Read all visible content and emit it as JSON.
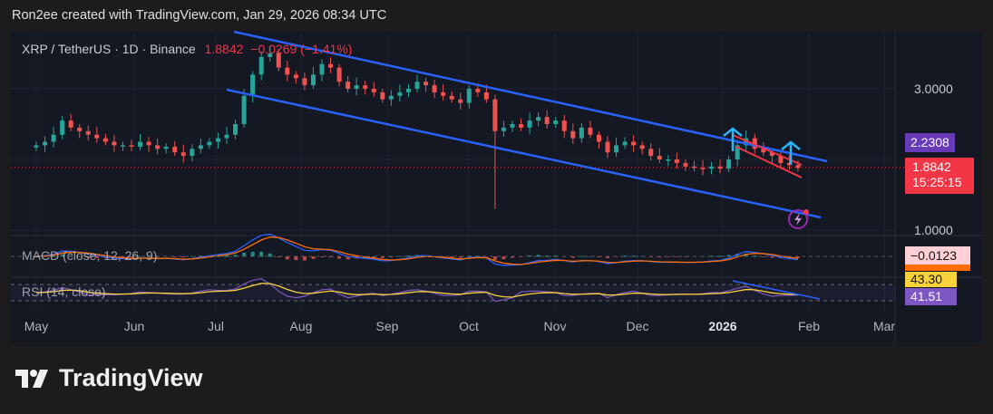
{
  "caption": "Ron2ee created with TradingView.com, Jan 29, 2026 08:34 UTC",
  "legend": {
    "symbol": "XRP / TetherUS · 1D · Binance",
    "price": "1.8842",
    "change": "−0.0269 (−1.41%)"
  },
  "price_axis": {
    "labels": [
      "3.0000",
      "1.0000"
    ]
  },
  "tags": {
    "target": "2.2308",
    "last_price": "1.8842",
    "countdown": "15:25:15",
    "macd": "−0.0123",
    "rsi_ma": "43.30",
    "rsi": "41.51"
  },
  "indicators": {
    "macd": "MACD (close, 12, 26, 9)",
    "rsi": "RSI (14, close)"
  },
  "logo": "TradingView",
  "colors": {
    "up": "#26a69a",
    "down": "#ef5350",
    "channel": "#2962ff",
    "wedge": "#f23645",
    "arrow": "#29b6f6",
    "bg": "#141823"
  },
  "chart_data": {
    "type": "candlestick",
    "title": "XRP / TetherUS · 1D · Binance",
    "x_ticks": [
      "May",
      "Jun",
      "Jul",
      "Aug",
      "Sep",
      "Oct",
      "Nov",
      "Dec",
      "2026",
      "Feb",
      "Mar"
    ],
    "ylim": [
      0.8,
      3.8
    ],
    "y_ticks": [
      1.0,
      3.0
    ],
    "closes_3day": [
      2.2,
      2.25,
      2.35,
      2.55,
      2.45,
      2.4,
      2.35,
      2.3,
      2.25,
      2.2,
      2.2,
      2.18,
      2.25,
      2.2,
      2.15,
      2.18,
      2.1,
      2.05,
      2.15,
      2.2,
      2.25,
      2.3,
      2.35,
      2.5,
      2.9,
      3.2,
      3.45,
      3.5,
      3.3,
      3.2,
      3.15,
      3.05,
      3.2,
      3.35,
      3.3,
      3.1,
      3.0,
      3.05,
      3.0,
      2.95,
      2.85,
      2.9,
      2.95,
      3.0,
      3.1,
      3.05,
      2.95,
      2.9,
      2.85,
      2.8,
      3.0,
      2.95,
      2.85,
      2.4,
      2.45,
      2.5,
      2.45,
      2.55,
      2.6,
      2.5,
      2.55,
      2.4,
      2.3,
      2.45,
      2.35,
      2.25,
      2.1,
      2.2,
      2.25,
      2.2,
      2.15,
      2.05,
      2.0,
      2.0,
      1.95,
      1.9,
      1.88,
      1.87,
      1.9,
      1.87,
      2.0,
      2.2,
      2.3,
      2.15,
      2.1,
      2.05,
      1.95,
      1.92,
      1.88
    ],
    "crash_low": 1.3,
    "last_price": 1.8842,
    "target": 2.2308
  }
}
